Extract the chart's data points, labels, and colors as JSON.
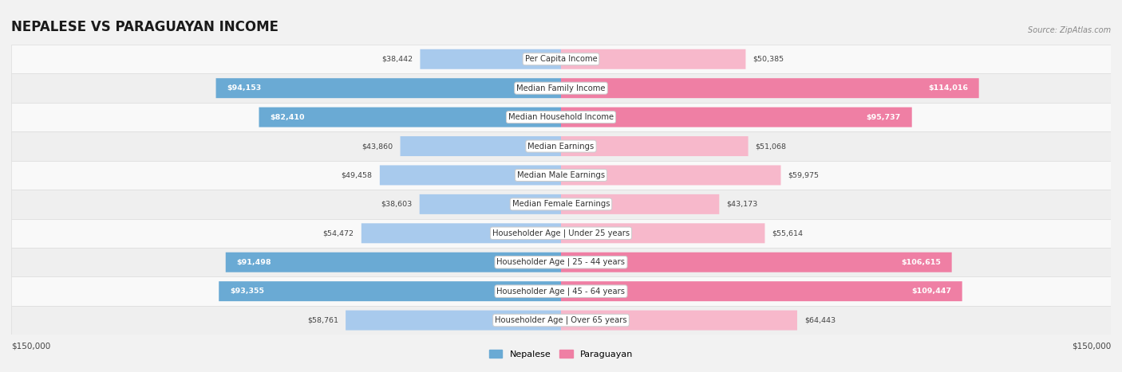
{
  "title": "NEPALESE VS PARAGUAYAN INCOME",
  "source": "Source: ZipAtlas.com",
  "categories": [
    "Per Capita Income",
    "Median Family Income",
    "Median Household Income",
    "Median Earnings",
    "Median Male Earnings",
    "Median Female Earnings",
    "Householder Age | Under 25 years",
    "Householder Age | 25 - 44 years",
    "Householder Age | 45 - 64 years",
    "Householder Age | Over 65 years"
  ],
  "nepalese": [
    38442,
    94153,
    82410,
    43860,
    49458,
    38603,
    54472,
    91498,
    93355,
    58761
  ],
  "paraguayan": [
    50385,
    114016,
    95737,
    51068,
    59975,
    43173,
    55614,
    106615,
    109447,
    64443
  ],
  "nepalese_labels": [
    "$38,442",
    "$94,153",
    "$82,410",
    "$43,860",
    "$49,458",
    "$38,603",
    "$54,472",
    "$91,498",
    "$93,355",
    "$58,761"
  ],
  "paraguayan_labels": [
    "$50,385",
    "$114,016",
    "$95,737",
    "$51,068",
    "$59,975",
    "$43,173",
    "$55,614",
    "$106,615",
    "$109,447",
    "$64,443"
  ],
  "nepalese_color_light": "#A8CAED",
  "paraguayan_color_light": "#F7B8CB",
  "nepalese_color_strong": "#6AAAD4",
  "paraguayan_color_strong": "#EF7FA4",
  "max_val": 150000,
  "background_color": "#f2f2f2",
  "row_bg_color": "#f9f9f9",
  "row_alt_color": "#efefef",
  "label_box_color": "#ffffff",
  "legend_nepalese": "Nepalese",
  "legend_paraguayan": "Paraguayan",
  "xlabel_left": "$150,000",
  "xlabel_right": "$150,000",
  "nepalese_strong_threshold": 62000,
  "paraguayan_strong_threshold": 72000
}
